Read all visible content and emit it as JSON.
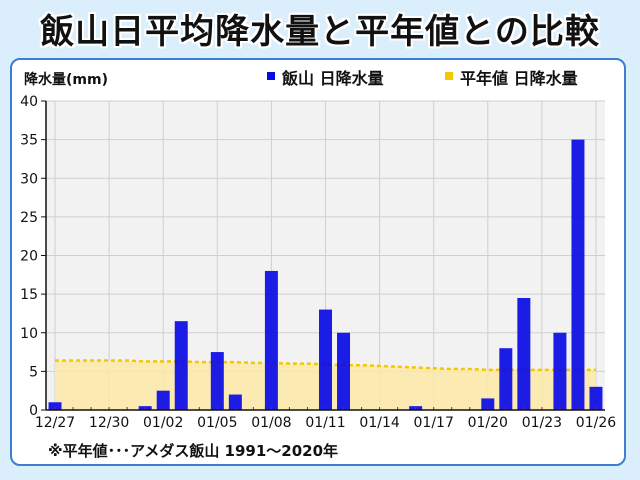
{
  "title": "飯山日平均降水量と平年値との比較",
  "footnote": "※平年値･･･アメダス飯山 1991〜2020年",
  "colors": {
    "bar": "#0a0ae6",
    "normal_line": "#f2c800",
    "normal_fill": "#fdeaa8",
    "background": "#dbeefc",
    "panel_border": "#3a7fd0"
  },
  "chart_data": {
    "type": "bar",
    "ylabel": "降水量(mm)",
    "ylim": [
      0,
      40
    ],
    "yticks": [
      0,
      5,
      10,
      15,
      20,
      25,
      30,
      35,
      40
    ],
    "xtick_labels": [
      "12/27",
      "12/30",
      "01/02",
      "01/05",
      "01/08",
      "01/11",
      "01/14",
      "01/17",
      "01/20",
      "01/23",
      "01/26"
    ],
    "grid": true,
    "legend_position": "top-right",
    "categories": [
      "12/27",
      "12/28",
      "12/29",
      "12/30",
      "12/31",
      "01/01",
      "01/02",
      "01/03",
      "01/04",
      "01/05",
      "01/06",
      "01/07",
      "01/08",
      "01/09",
      "01/10",
      "01/11",
      "01/12",
      "01/13",
      "01/14",
      "01/15",
      "01/16",
      "01/17",
      "01/18",
      "01/19",
      "01/20",
      "01/21",
      "01/22",
      "01/23",
      "01/24",
      "01/25",
      "01/26"
    ],
    "series": [
      {
        "name": "飯山 日降水量",
        "type": "bar",
        "values": [
          1.0,
          0,
          0,
          0,
          0,
          0.5,
          2.5,
          11.5,
          0,
          7.5,
          2.0,
          0,
          18.0,
          0,
          0,
          13.0,
          10.0,
          0,
          0,
          0,
          0.5,
          0,
          0,
          0,
          1.5,
          8.0,
          14.5,
          0,
          10.0,
          35.0,
          3.0
        ]
      },
      {
        "name": "平年値 日降水量",
        "type": "area",
        "values": [
          6.4,
          6.4,
          6.4,
          6.4,
          6.4,
          6.3,
          6.3,
          6.3,
          6.2,
          6.2,
          6.2,
          6.1,
          6.1,
          6.0,
          6.0,
          5.9,
          5.8,
          5.8,
          5.7,
          5.6,
          5.5,
          5.4,
          5.3,
          5.3,
          5.2,
          5.2,
          5.2,
          5.2,
          5.2,
          5.2,
          5.2
        ]
      }
    ]
  }
}
